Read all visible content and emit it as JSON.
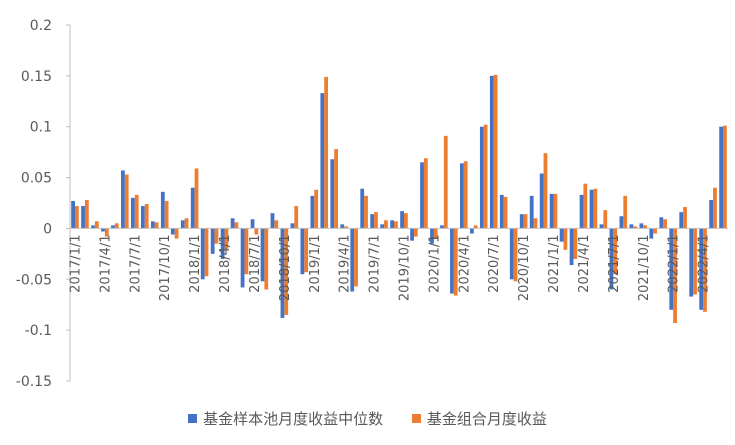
{
  "chart_data": {
    "type": "bar",
    "title": "",
    "xlabel": "",
    "ylabel": "",
    "ylim": [
      -0.15,
      0.2
    ],
    "yticks": [
      "0.2",
      "0.15",
      "0.1",
      "0.05",
      "0",
      "-0.05",
      "-0.1",
      "-0.15"
    ],
    "grid": false,
    "legend_position": "bottom",
    "xtick_labels": [
      {
        "label": "2017/1/1",
        "index": 0
      },
      {
        "label": "2017/4/1",
        "index": 3
      },
      {
        "label": "2017/7/1",
        "index": 6
      },
      {
        "label": "2017/10/1",
        "index": 9
      },
      {
        "label": "2018/1/1",
        "index": 12
      },
      {
        "label": "2018/4/1",
        "index": 15
      },
      {
        "label": "2018/7/1",
        "index": 18
      },
      {
        "label": "2018/10/1",
        "index": 21
      },
      {
        "label": "2019/1/1",
        "index": 24
      },
      {
        "label": "2019/4/1",
        "index": 27
      },
      {
        "label": "2019/7/1",
        "index": 30
      },
      {
        "label": "2019/10/1",
        "index": 33
      },
      {
        "label": "2020/1/1",
        "index": 36
      },
      {
        "label": "2020/4/1",
        "index": 39
      },
      {
        "label": "2020/7/1",
        "index": 42
      },
      {
        "label": "2020/10/1",
        "index": 45
      },
      {
        "label": "2021/1/1",
        "index": 48
      },
      {
        "label": "2021/4/1",
        "index": 51
      },
      {
        "label": "2021/7/1",
        "index": 54
      },
      {
        "label": "2021/10/1",
        "index": 57
      },
      {
        "label": "2022/1/1",
        "index": 60
      },
      {
        "label": "2022/4/1",
        "index": 63
      }
    ],
    "series": [
      {
        "name": "基金样本池月度收益中位数",
        "color": "#4472C4",
        "values": [
          0.027,
          0.022,
          0.003,
          -0.003,
          0.003,
          0.057,
          0.03,
          0.022,
          0.007,
          0.036,
          -0.006,
          0.008,
          0.04,
          -0.05,
          -0.025,
          -0.03,
          0.01,
          -0.058,
          0.009,
          -0.052,
          0.015,
          -0.088,
          0.005,
          -0.045,
          0.032,
          0.133,
          0.068,
          0.004,
          -0.062,
          0.039,
          0.014,
          0.004,
          0.008,
          0.017,
          -0.012,
          0.065,
          -0.015,
          0.003,
          -0.064,
          0.064,
          -0.005,
          0.1,
          0.15,
          0.033,
          -0.05,
          0.014,
          0.032,
          0.054,
          0.034,
          -0.013,
          -0.036,
          0.033,
          0.038,
          0.004,
          -0.06,
          0.012,
          0.004,
          0.005,
          -0.01,
          0.011,
          -0.08,
          0.016,
          -0.067,
          -0.08,
          0.028,
          0.1
        ]
      },
      {
        "name": "基金组合月度收益",
        "color": "#ED7D31",
        "values": [
          0.022,
          0.028,
          0.007,
          -0.008,
          0.005,
          0.053,
          0.033,
          0.024,
          0.006,
          0.027,
          -0.01,
          0.01,
          0.059,
          -0.047,
          -0.015,
          -0.02,
          0.006,
          -0.045,
          -0.006,
          -0.06,
          0.008,
          -0.085,
          0.022,
          -0.043,
          0.038,
          0.149,
          0.078,
          0.002,
          -0.057,
          0.032,
          0.016,
          0.008,
          0.007,
          0.015,
          -0.008,
          0.069,
          -0.01,
          0.091,
          -0.066,
          0.066,
          0.003,
          0.102,
          0.151,
          0.031,
          -0.052,
          0.014,
          0.01,
          0.074,
          0.034,
          -0.021,
          -0.03,
          0.044,
          0.039,
          0.018,
          -0.045,
          0.032,
          0.002,
          0.003,
          -0.005,
          0.009,
          -0.093,
          0.021,
          -0.065,
          -0.082,
          0.04,
          0.101
        ]
      }
    ]
  }
}
